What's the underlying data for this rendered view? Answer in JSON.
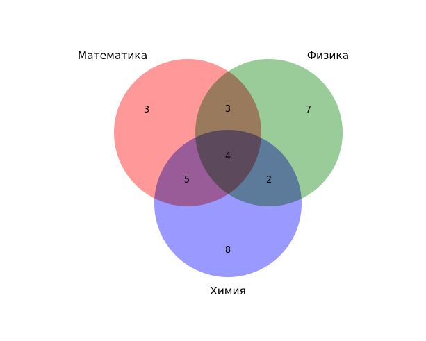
{
  "sets": [
    {
      "label": "Математика",
      "color": "#ff9999"
    },
    {
      "label": "Физика",
      "color": "#99cc99"
    },
    {
      "label": "Химия",
      "color": "#9999ff"
    }
  ],
  "regions": {
    "only_math": "3",
    "only_physics": "7",
    "only_chemistry": "8",
    "math_physics": "3",
    "math_chemistry": "5",
    "physics_chemistry": "2",
    "all_three": "4"
  }
}
